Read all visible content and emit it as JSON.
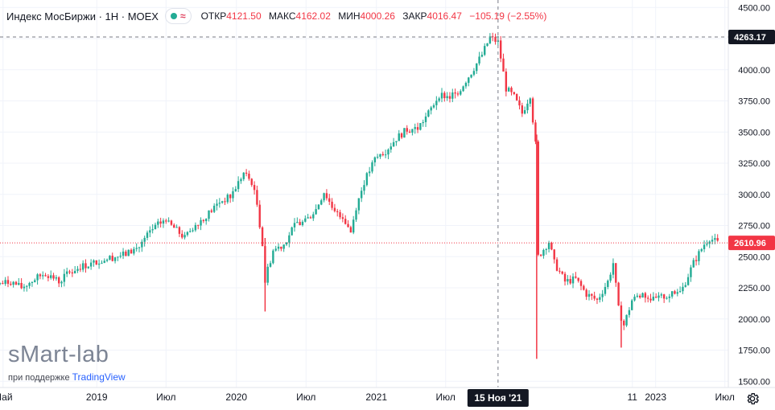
{
  "legend": {
    "symbol": "Индекс МосБиржи · 1Н · MOEX",
    "labels": {
      "open": "ОТКР",
      "high": "МАКС",
      "low": "МИН",
      "close": "ЗАКР"
    },
    "open": "4121.50",
    "high": "4162.02",
    "low": "4000.26",
    "close": "4016.47",
    "change": "−105.19 (−2.55%)"
  },
  "watermark": {
    "brand": "sMart-lab",
    "support": "при поддержке",
    "provider": "TradingView"
  },
  "colors": {
    "up": "#22ab94",
    "down": "#f23645",
    "grid": "#f0f3fa",
    "text": "#131722",
    "crosshair_label": "#131722"
  },
  "chart_data": {
    "type": "candlestick",
    "timeframe": "1Н",
    "y_range": [
      1450,
      4560
    ],
    "y_ticks": [
      1500,
      1750,
      2000,
      2250,
      2500,
      2750,
      3000,
      3250,
      3500,
      3750,
      4000,
      4250,
      4500
    ],
    "y_tick_labels": [
      "1500.00",
      "1750.00",
      "2000.00",
      "2250.00",
      "2500.00",
      "2750.00",
      "3000.00",
      "3250.00",
      "3500.00",
      "3750.00",
      "4000.00",
      "4250.00",
      "4500.00"
    ],
    "x_range": [
      "2018-04-23",
      "2023-07-10"
    ],
    "x_ticks": [
      {
        "date": "2018-05-01",
        "label": "Май"
      },
      {
        "date": "2019-01-01",
        "label": "2019"
      },
      {
        "date": "2019-07-01",
        "label": "Июл"
      },
      {
        "date": "2020-01-01",
        "label": "2020"
      },
      {
        "date": "2020-07-01",
        "label": "Июл"
      },
      {
        "date": "2021-01-01",
        "label": "2021"
      },
      {
        "date": "2021-07-01",
        "label": "Июл"
      },
      {
        "date": "2022-11-01",
        "label": "11"
      },
      {
        "date": "2023-01-01",
        "label": "2023"
      },
      {
        "date": "2023-07-01",
        "label": "Июл"
      }
    ],
    "crosshair": {
      "date": "2021-11-15",
      "date_label": "15 Ноя '21",
      "price": 4263.17,
      "price_label": "4263.17"
    },
    "last_price": {
      "value": 2610.96,
      "label": "2610.96"
    },
    "path": [
      [
        "2018-04-23",
        2280
      ],
      [
        "2018-05-21",
        2300
      ],
      [
        "2018-06-18",
        2250
      ],
      [
        "2018-07-23",
        2320
      ],
      [
        "2018-08-20",
        2370
      ],
      [
        "2018-09-24",
        2300
      ],
      [
        "2018-10-22",
        2380
      ],
      [
        "2018-11-19",
        2420
      ],
      [
        "2018-12-17",
        2440
      ],
      [
        "2019-01-21",
        2480
      ],
      [
        "2019-02-18",
        2500
      ],
      [
        "2019-03-18",
        2520
      ],
      [
        "2019-04-22",
        2580
      ],
      [
        "2019-05-20",
        2700
      ],
      [
        "2019-06-24",
        2790
      ],
      [
        "2019-07-22",
        2730
      ],
      [
        "2019-08-19",
        2650
      ],
      [
        "2019-09-16",
        2760
      ],
      [
        "2019-10-21",
        2850
      ],
      [
        "2019-11-18",
        2940
      ],
      [
        "2019-12-16",
        2980
      ],
      [
        "2020-01-20",
        3170
      ],
      [
        "2020-02-10",
        3100
      ],
      [
        "2020-02-24",
        2920
      ],
      [
        "2020-03-09",
        2600
      ],
      [
        "2020-03-16",
        2300
      ],
      [
        "2020-03-23",
        2400
      ],
      [
        "2020-04-06",
        2550
      ],
      [
        "2020-05-04",
        2600
      ],
      [
        "2020-06-01",
        2750
      ],
      [
        "2020-06-29",
        2780
      ],
      [
        "2020-07-27",
        2880
      ],
      [
        "2020-08-17",
        3020
      ],
      [
        "2020-09-07",
        2900
      ],
      [
        "2020-10-05",
        2820
      ],
      [
        "2020-10-26",
        2700
      ],
      [
        "2020-11-09",
        2900
      ],
      [
        "2020-11-30",
        3100
      ],
      [
        "2020-12-28",
        3280
      ],
      [
        "2021-01-25",
        3350
      ],
      [
        "2021-02-22",
        3450
      ],
      [
        "2021-03-22",
        3520
      ],
      [
        "2021-04-19",
        3530
      ],
      [
        "2021-05-17",
        3650
      ],
      [
        "2021-06-14",
        3800
      ],
      [
        "2021-07-12",
        3780
      ],
      [
        "2021-08-09",
        3850
      ],
      [
        "2021-09-06",
        3980
      ],
      [
        "2021-10-04",
        4120
      ],
      [
        "2021-10-25",
        4260
      ],
      [
        "2021-11-15",
        4220
      ],
      [
        "2021-12-06",
        3850
      ],
      [
        "2021-12-27",
        3780
      ],
      [
        "2022-01-17",
        3650
      ],
      [
        "2022-02-07",
        3800
      ],
      [
        "2022-02-21",
        3400
      ],
      [
        "2022-02-28",
        2500
      ],
      [
        "2022-03-28",
        2620
      ],
      [
        "2022-04-11",
        2450
      ],
      [
        "2022-05-09",
        2300
      ],
      [
        "2022-06-06",
        2320
      ],
      [
        "2022-07-04",
        2200
      ],
      [
        "2022-08-01",
        2150
      ],
      [
        "2022-08-29",
        2300
      ],
      [
        "2022-09-12",
        2450
      ],
      [
        "2022-09-26",
        2080
      ],
      [
        "2022-10-10",
        1950
      ],
      [
        "2022-10-31",
        2150
      ],
      [
        "2022-11-28",
        2200
      ],
      [
        "2022-12-26",
        2150
      ],
      [
        "2023-01-23",
        2180
      ],
      [
        "2023-02-20",
        2200
      ],
      [
        "2023-03-13",
        2250
      ],
      [
        "2023-04-10",
        2450
      ],
      [
        "2023-05-08",
        2600
      ],
      [
        "2023-05-22",
        2650
      ],
      [
        "2023-06-12",
        2610
      ]
    ]
  }
}
